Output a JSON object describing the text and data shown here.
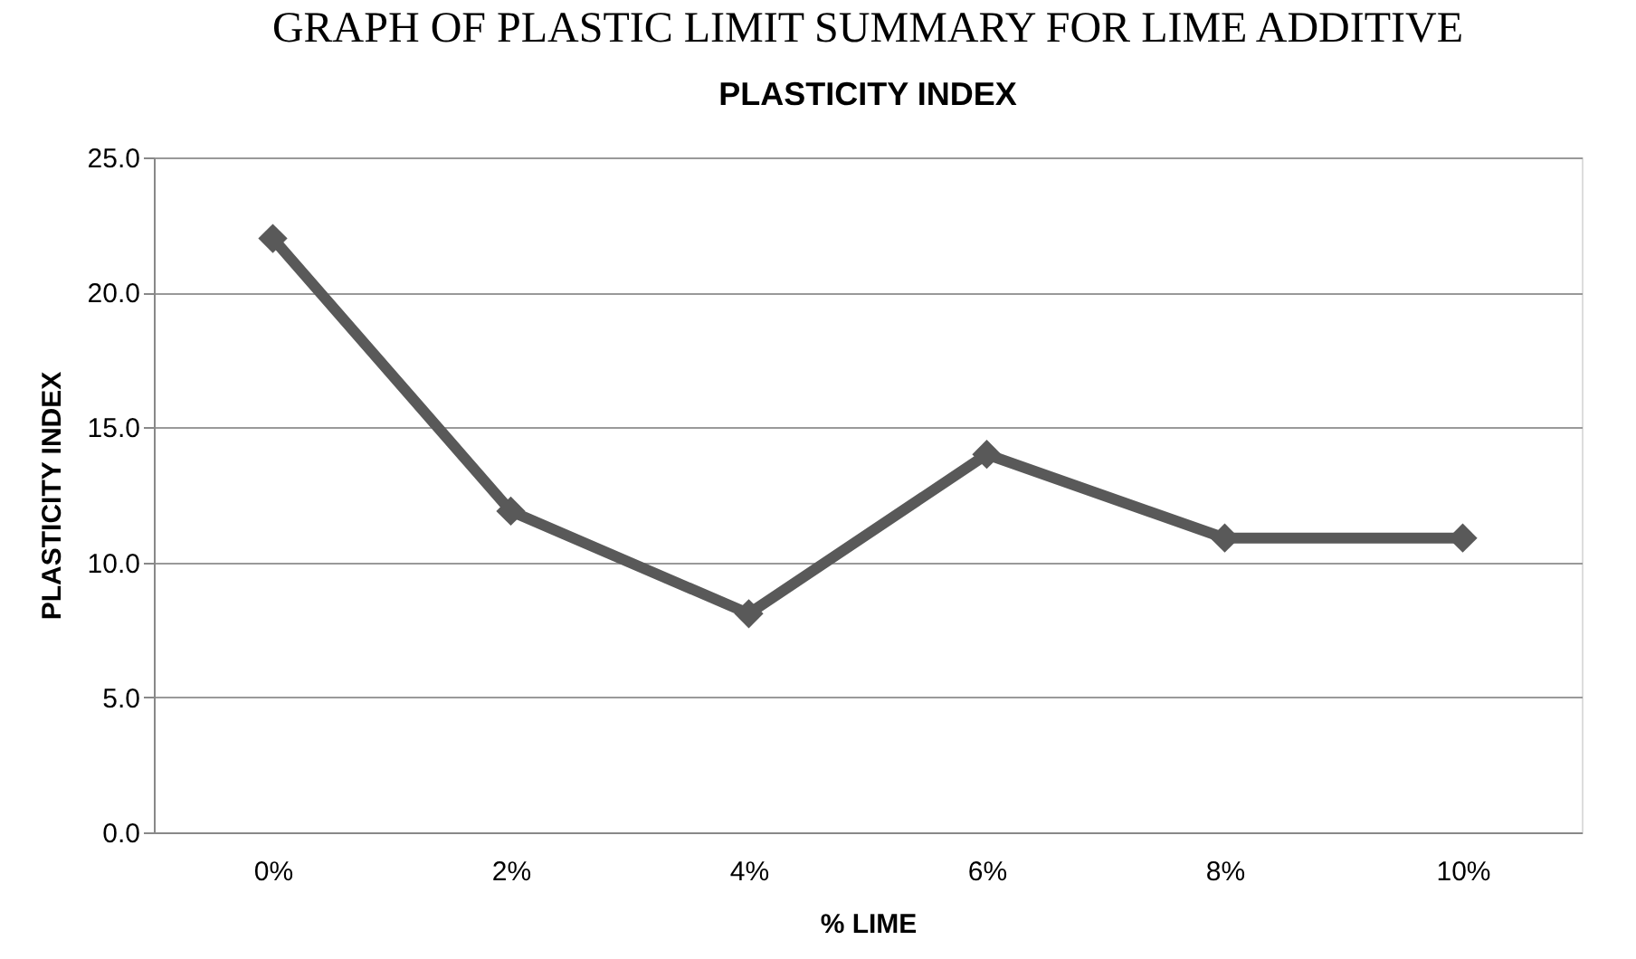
{
  "chart_data": {
    "type": "line",
    "title": "PLASTICITY INDEX",
    "xlabel": "% LIME",
    "ylabel": "PLASTICITY INDEX",
    "annotations": [
      "GRAPH OF PLASTIC LIMIT SUMMARY FOR LIME ADDITIVE"
    ],
    "categories": [
      "0%",
      "2%",
      "4%",
      "6%",
      "8%",
      "10%"
    ],
    "series": [
      {
        "color": "#595959",
        "values": [
          22.0,
          11.9,
          8.1,
          14.0,
          10.9,
          10.9
        ]
      }
    ],
    "ylim": [
      0,
      25
    ],
    "yticks": [
      {
        "value": 0,
        "label": "0.0"
      },
      {
        "value": 5,
        "label": "5.0"
      },
      {
        "value": 10,
        "label": "10.0"
      },
      {
        "value": 15,
        "label": "15.0"
      },
      {
        "value": 20,
        "label": "20.0"
      },
      {
        "value": 25,
        "label": "25.0"
      }
    ],
    "grid": "y",
    "marker": "diamond",
    "line_style": "solid",
    "legend": false
  }
}
